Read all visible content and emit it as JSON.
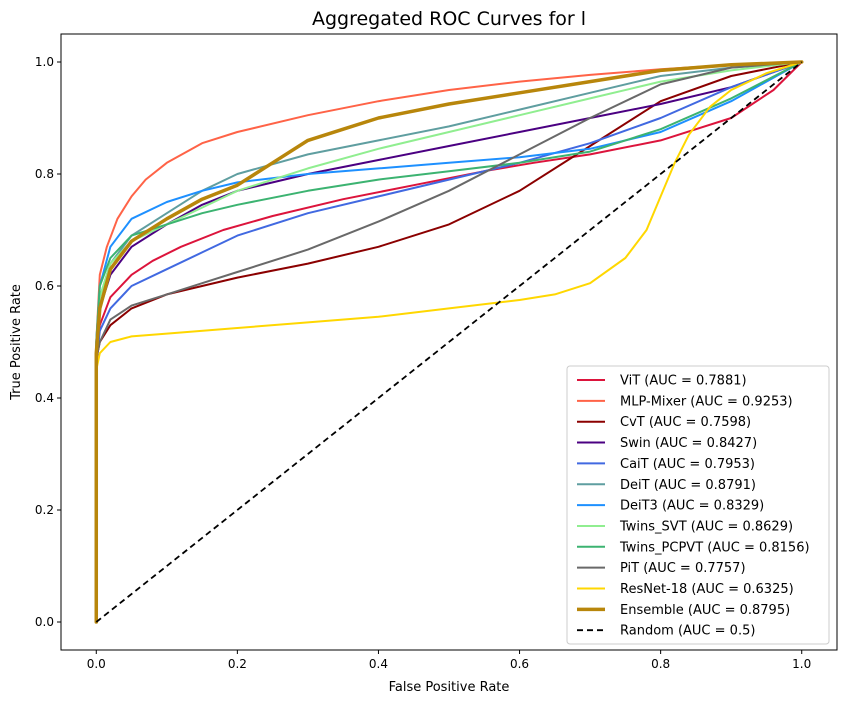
{
  "chart_data": {
    "type": "line",
    "title": "Aggregated ROC Curves for l",
    "xlabel": "False Positive Rate",
    "ylabel": "True Positive Rate",
    "xlim": [
      -0.05,
      1.05
    ],
    "ylim": [
      -0.05,
      1.05
    ],
    "xticks": [
      "0.0",
      "0.2",
      "0.4",
      "0.6",
      "0.8",
      "1.0"
    ],
    "yticks": [
      "0.0",
      "0.2",
      "0.4",
      "0.6",
      "0.8",
      "1.0"
    ],
    "legend_position": "bottom-right",
    "series": [
      {
        "name": "ViT (AUC = 0.7881)",
        "color": "#dc143c",
        "width": 2,
        "points": [
          [
            0,
            0
          ],
          [
            0,
            0.45
          ],
          [
            0.005,
            0.53
          ],
          [
            0.02,
            0.58
          ],
          [
            0.05,
            0.62
          ],
          [
            0.08,
            0.645
          ],
          [
            0.12,
            0.67
          ],
          [
            0.18,
            0.7
          ],
          [
            0.25,
            0.725
          ],
          [
            0.35,
            0.755
          ],
          [
            0.45,
            0.78
          ],
          [
            0.55,
            0.805
          ],
          [
            0.62,
            0.82
          ],
          [
            0.7,
            0.835
          ],
          [
            0.8,
            0.86
          ],
          [
            0.9,
            0.9
          ],
          [
            0.96,
            0.95
          ],
          [
            1,
            1
          ]
        ]
      },
      {
        "name": "MLP-Mixer (AUC = 0.9253)",
        "color": "#ff6347",
        "width": 2,
        "points": [
          [
            0,
            0
          ],
          [
            0,
            0.5
          ],
          [
            0.005,
            0.62
          ],
          [
            0.015,
            0.67
          ],
          [
            0.03,
            0.72
          ],
          [
            0.05,
            0.76
          ],
          [
            0.07,
            0.79
          ],
          [
            0.1,
            0.82
          ],
          [
            0.15,
            0.855
          ],
          [
            0.2,
            0.875
          ],
          [
            0.3,
            0.905
          ],
          [
            0.4,
            0.93
          ],
          [
            0.5,
            0.95
          ],
          [
            0.6,
            0.965
          ],
          [
            0.7,
            0.977
          ],
          [
            0.8,
            0.987
          ],
          [
            0.9,
            0.995
          ],
          [
            1,
            1
          ]
        ]
      },
      {
        "name": "CvT (AUC = 0.7598)",
        "color": "#8b0000",
        "width": 2,
        "points": [
          [
            0,
            0
          ],
          [
            0,
            0.47
          ],
          [
            0.005,
            0.5
          ],
          [
            0.02,
            0.53
          ],
          [
            0.05,
            0.56
          ],
          [
            0.1,
            0.585
          ],
          [
            0.15,
            0.6
          ],
          [
            0.2,
            0.615
          ],
          [
            0.3,
            0.64
          ],
          [
            0.4,
            0.67
          ],
          [
            0.5,
            0.71
          ],
          [
            0.6,
            0.77
          ],
          [
            0.7,
            0.85
          ],
          [
            0.8,
            0.93
          ],
          [
            0.9,
            0.975
          ],
          [
            1,
            1
          ]
        ]
      },
      {
        "name": "Swin (AUC = 0.8427)",
        "color": "#4b0082",
        "width": 2,
        "points": [
          [
            0,
            0
          ],
          [
            0,
            0.48
          ],
          [
            0.005,
            0.56
          ],
          [
            0.02,
            0.62
          ],
          [
            0.05,
            0.67
          ],
          [
            0.1,
            0.71
          ],
          [
            0.15,
            0.745
          ],
          [
            0.2,
            0.77
          ],
          [
            0.3,
            0.8
          ],
          [
            0.4,
            0.825
          ],
          [
            0.5,
            0.85
          ],
          [
            0.6,
            0.875
          ],
          [
            0.7,
            0.9
          ],
          [
            0.8,
            0.925
          ],
          [
            0.9,
            0.955
          ],
          [
            1,
            1
          ]
        ]
      },
      {
        "name": "CaiT (AUC = 0.7953)",
        "color": "#4169e1",
        "width": 2,
        "points": [
          [
            0,
            0
          ],
          [
            0,
            0.46
          ],
          [
            0.005,
            0.52
          ],
          [
            0.02,
            0.56
          ],
          [
            0.05,
            0.6
          ],
          [
            0.1,
            0.63
          ],
          [
            0.15,
            0.66
          ],
          [
            0.2,
            0.69
          ],
          [
            0.3,
            0.73
          ],
          [
            0.4,
            0.76
          ],
          [
            0.5,
            0.79
          ],
          [
            0.6,
            0.82
          ],
          [
            0.7,
            0.855
          ],
          [
            0.8,
            0.9
          ],
          [
            0.9,
            0.955
          ],
          [
            1,
            1
          ]
        ]
      },
      {
        "name": "DeiT (AUC = 0.8791)",
        "color": "#5f9ea0",
        "width": 2,
        "points": [
          [
            0,
            0
          ],
          [
            0,
            0.49
          ],
          [
            0.005,
            0.58
          ],
          [
            0.02,
            0.64
          ],
          [
            0.05,
            0.69
          ],
          [
            0.1,
            0.73
          ],
          [
            0.15,
            0.77
          ],
          [
            0.2,
            0.8
          ],
          [
            0.3,
            0.835
          ],
          [
            0.4,
            0.86
          ],
          [
            0.5,
            0.885
          ],
          [
            0.6,
            0.915
          ],
          [
            0.7,
            0.945
          ],
          [
            0.8,
            0.975
          ],
          [
            0.9,
            0.99
          ],
          [
            1,
            1
          ]
        ]
      },
      {
        "name": "DeiT3 (AUC = 0.8329)",
        "color": "#1e90ff",
        "width": 2,
        "points": [
          [
            0,
            0
          ],
          [
            0,
            0.5
          ],
          [
            0.005,
            0.6
          ],
          [
            0.02,
            0.67
          ],
          [
            0.05,
            0.72
          ],
          [
            0.1,
            0.75
          ],
          [
            0.15,
            0.77
          ],
          [
            0.2,
            0.785
          ],
          [
            0.3,
            0.8
          ],
          [
            0.4,
            0.81
          ],
          [
            0.5,
            0.82
          ],
          [
            0.6,
            0.83
          ],
          [
            0.7,
            0.845
          ],
          [
            0.8,
            0.875
          ],
          [
            0.9,
            0.93
          ],
          [
            1,
            1
          ]
        ]
      },
      {
        "name": "Twins_SVT (AUC = 0.8629)",
        "color": "#90ee90",
        "width": 2,
        "points": [
          [
            0,
            0
          ],
          [
            0,
            0.49
          ],
          [
            0.005,
            0.58
          ],
          [
            0.02,
            0.64
          ],
          [
            0.05,
            0.68
          ],
          [
            0.1,
            0.71
          ],
          [
            0.15,
            0.74
          ],
          [
            0.2,
            0.77
          ],
          [
            0.3,
            0.81
          ],
          [
            0.4,
            0.845
          ],
          [
            0.5,
            0.875
          ],
          [
            0.6,
            0.905
          ],
          [
            0.7,
            0.935
          ],
          [
            0.8,
            0.965
          ],
          [
            0.9,
            0.985
          ],
          [
            1,
            1
          ]
        ]
      },
      {
        "name": "Twins_PCPVT (AUC = 0.8156)",
        "color": "#3cb371",
        "width": 2,
        "points": [
          [
            0,
            0
          ],
          [
            0,
            0.5
          ],
          [
            0.005,
            0.6
          ],
          [
            0.02,
            0.65
          ],
          [
            0.05,
            0.69
          ],
          [
            0.1,
            0.71
          ],
          [
            0.15,
            0.73
          ],
          [
            0.2,
            0.745
          ],
          [
            0.3,
            0.77
          ],
          [
            0.4,
            0.79
          ],
          [
            0.5,
            0.805
          ],
          [
            0.6,
            0.82
          ],
          [
            0.7,
            0.84
          ],
          [
            0.8,
            0.88
          ],
          [
            0.9,
            0.935
          ],
          [
            1,
            1
          ]
        ]
      },
      {
        "name": "PiT (AUC = 0.7757)",
        "color": "#696969",
        "width": 2,
        "points": [
          [
            0,
            0
          ],
          [
            0,
            0.47
          ],
          [
            0.005,
            0.5
          ],
          [
            0.02,
            0.54
          ],
          [
            0.05,
            0.565
          ],
          [
            0.1,
            0.585
          ],
          [
            0.15,
            0.605
          ],
          [
            0.2,
            0.625
          ],
          [
            0.3,
            0.665
          ],
          [
            0.4,
            0.715
          ],
          [
            0.5,
            0.77
          ],
          [
            0.6,
            0.835
          ],
          [
            0.7,
            0.9
          ],
          [
            0.8,
            0.96
          ],
          [
            0.9,
            0.99
          ],
          [
            1,
            1
          ]
        ]
      },
      {
        "name": "ResNet-18 (AUC = 0.6325)",
        "color": "#ffd700",
        "width": 2,
        "points": [
          [
            0,
            0
          ],
          [
            0,
            0.45
          ],
          [
            0.005,
            0.48
          ],
          [
            0.02,
            0.5
          ],
          [
            0.05,
            0.51
          ],
          [
            0.1,
            0.515
          ],
          [
            0.2,
            0.525
          ],
          [
            0.3,
            0.535
          ],
          [
            0.4,
            0.545
          ],
          [
            0.5,
            0.56
          ],
          [
            0.6,
            0.575
          ],
          [
            0.65,
            0.585
          ],
          [
            0.7,
            0.605
          ],
          [
            0.75,
            0.65
          ],
          [
            0.78,
            0.7
          ],
          [
            0.8,
            0.76
          ],
          [
            0.82,
            0.82
          ],
          [
            0.84,
            0.87
          ],
          [
            0.87,
            0.92
          ],
          [
            0.9,
            0.95
          ],
          [
            0.95,
            0.98
          ],
          [
            1,
            1
          ]
        ]
      },
      {
        "name": "Ensemble (AUC = 0.8795)",
        "color": "#b8860b",
        "width": 3.5,
        "points": [
          [
            0,
            0
          ],
          [
            0,
            0.48
          ],
          [
            0.005,
            0.56
          ],
          [
            0.02,
            0.63
          ],
          [
            0.05,
            0.68
          ],
          [
            0.1,
            0.72
          ],
          [
            0.15,
            0.755
          ],
          [
            0.2,
            0.78
          ],
          [
            0.25,
            0.82
          ],
          [
            0.3,
            0.86
          ],
          [
            0.35,
            0.88
          ],
          [
            0.4,
            0.9
          ],
          [
            0.5,
            0.925
          ],
          [
            0.6,
            0.945
          ],
          [
            0.7,
            0.965
          ],
          [
            0.8,
            0.985
          ],
          [
            0.9,
            0.995
          ],
          [
            1,
            1
          ]
        ]
      },
      {
        "name": "Random (AUC = 0.5)",
        "color": "#000000",
        "width": 1.8,
        "dashed": true,
        "points": [
          [
            0,
            0
          ],
          [
            1,
            1
          ]
        ]
      }
    ]
  }
}
